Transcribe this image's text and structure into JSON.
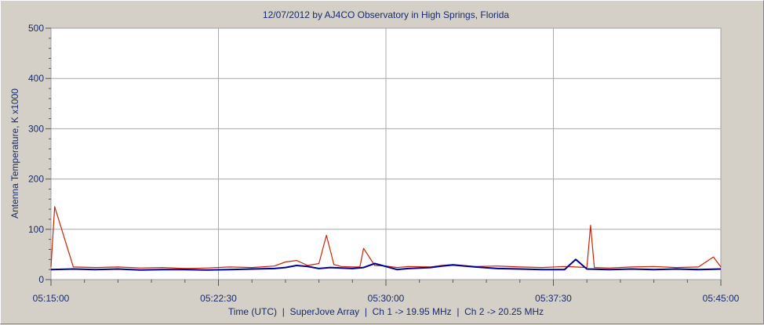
{
  "chart_data": {
    "type": "line",
    "title": "12/07/2012  by  AJ4CO Observatory  in  High Springs, Florida",
    "xlabel": "Time (UTC)  |  SuperJove Array  |  Ch 1 -> 19.95 MHz  |  Ch 2 -> 20.25 MHz",
    "ylabel": "Antenna Temperature, K x1000",
    "xlim": [
      "05:15:00",
      "05:45:00"
    ],
    "ylim": [
      0,
      500
    ],
    "x_tick_labels": [
      "05:15:00",
      "05:22:30",
      "05:30:00",
      "05:37:30",
      "05:45:00"
    ],
    "y_tick_labels": [
      "0",
      "100",
      "200",
      "300",
      "400",
      "500"
    ],
    "grid": true,
    "series": [
      {
        "color": "#cc2200",
        "x": [
          "05:15:00",
          "05:15:10",
          "05:16:00",
          "05:17:00",
          "05:18:00",
          "05:19:00",
          "05:20:00",
          "05:21:00",
          "05:22:00",
          "05:23:00",
          "05:24:00",
          "05:25:00",
          "05:25:30",
          "05:26:00",
          "05:26:30",
          "05:27:00",
          "05:27:20",
          "05:27:30",
          "05:27:40",
          "05:28:00",
          "05:28:30",
          "05:28:50",
          "05:29:00",
          "05:29:30",
          "05:30:00",
          "05:30:30",
          "05:31:00",
          "05:32:00",
          "05:32:30",
          "05:33:00",
          "05:34:00",
          "05:35:00",
          "05:36:00",
          "05:37:00",
          "05:38:00",
          "05:38:30",
          "05:39:00",
          "05:39:10",
          "05:39:20",
          "05:40:00",
          "05:41:00",
          "05:42:00",
          "05:43:00",
          "05:44:00",
          "05:44:40",
          "05:45:00"
        ],
        "values": [
          25,
          145,
          25,
          24,
          25,
          23,
          24,
          22,
          23,
          25,
          24,
          27,
          35,
          38,
          28,
          32,
          88,
          60,
          30,
          26,
          25,
          25,
          62,
          28,
          27,
          24,
          26,
          25,
          28,
          30,
          26,
          27,
          25,
          24,
          26,
          25,
          24,
          108,
          24,
          23,
          25,
          26,
          24,
          25,
          45,
          25
        ]
      },
      {
        "color": "#000099",
        "x": [
          "05:15:00",
          "05:16:00",
          "05:17:00",
          "05:18:00",
          "05:19:00",
          "05:20:00",
          "05:21:00",
          "05:22:00",
          "05:23:00",
          "05:24:00",
          "05:25:00",
          "05:25:30",
          "05:26:00",
          "05:26:30",
          "05:27:00",
          "05:27:30",
          "05:28:00",
          "05:28:30",
          "05:29:00",
          "05:29:30",
          "05:30:00",
          "05:30:30",
          "05:31:00",
          "05:32:00",
          "05:32:30",
          "05:33:00",
          "05:34:00",
          "05:35:00",
          "05:36:00",
          "05:37:00",
          "05:38:00",
          "05:38:30",
          "05:39:00",
          "05:40:00",
          "05:41:00",
          "05:42:00",
          "05:43:00",
          "05:44:00",
          "05:45:00"
        ],
        "values": [
          20,
          21,
          20,
          21,
          19,
          20,
          20,
          19,
          20,
          21,
          22,
          24,
          28,
          26,
          22,
          24,
          23,
          22,
          24,
          32,
          26,
          20,
          22,
          24,
          27,
          29,
          25,
          22,
          21,
          20,
          20,
          40,
          21,
          20,
          21,
          20,
          21,
          20,
          21
        ]
      }
    ]
  }
}
